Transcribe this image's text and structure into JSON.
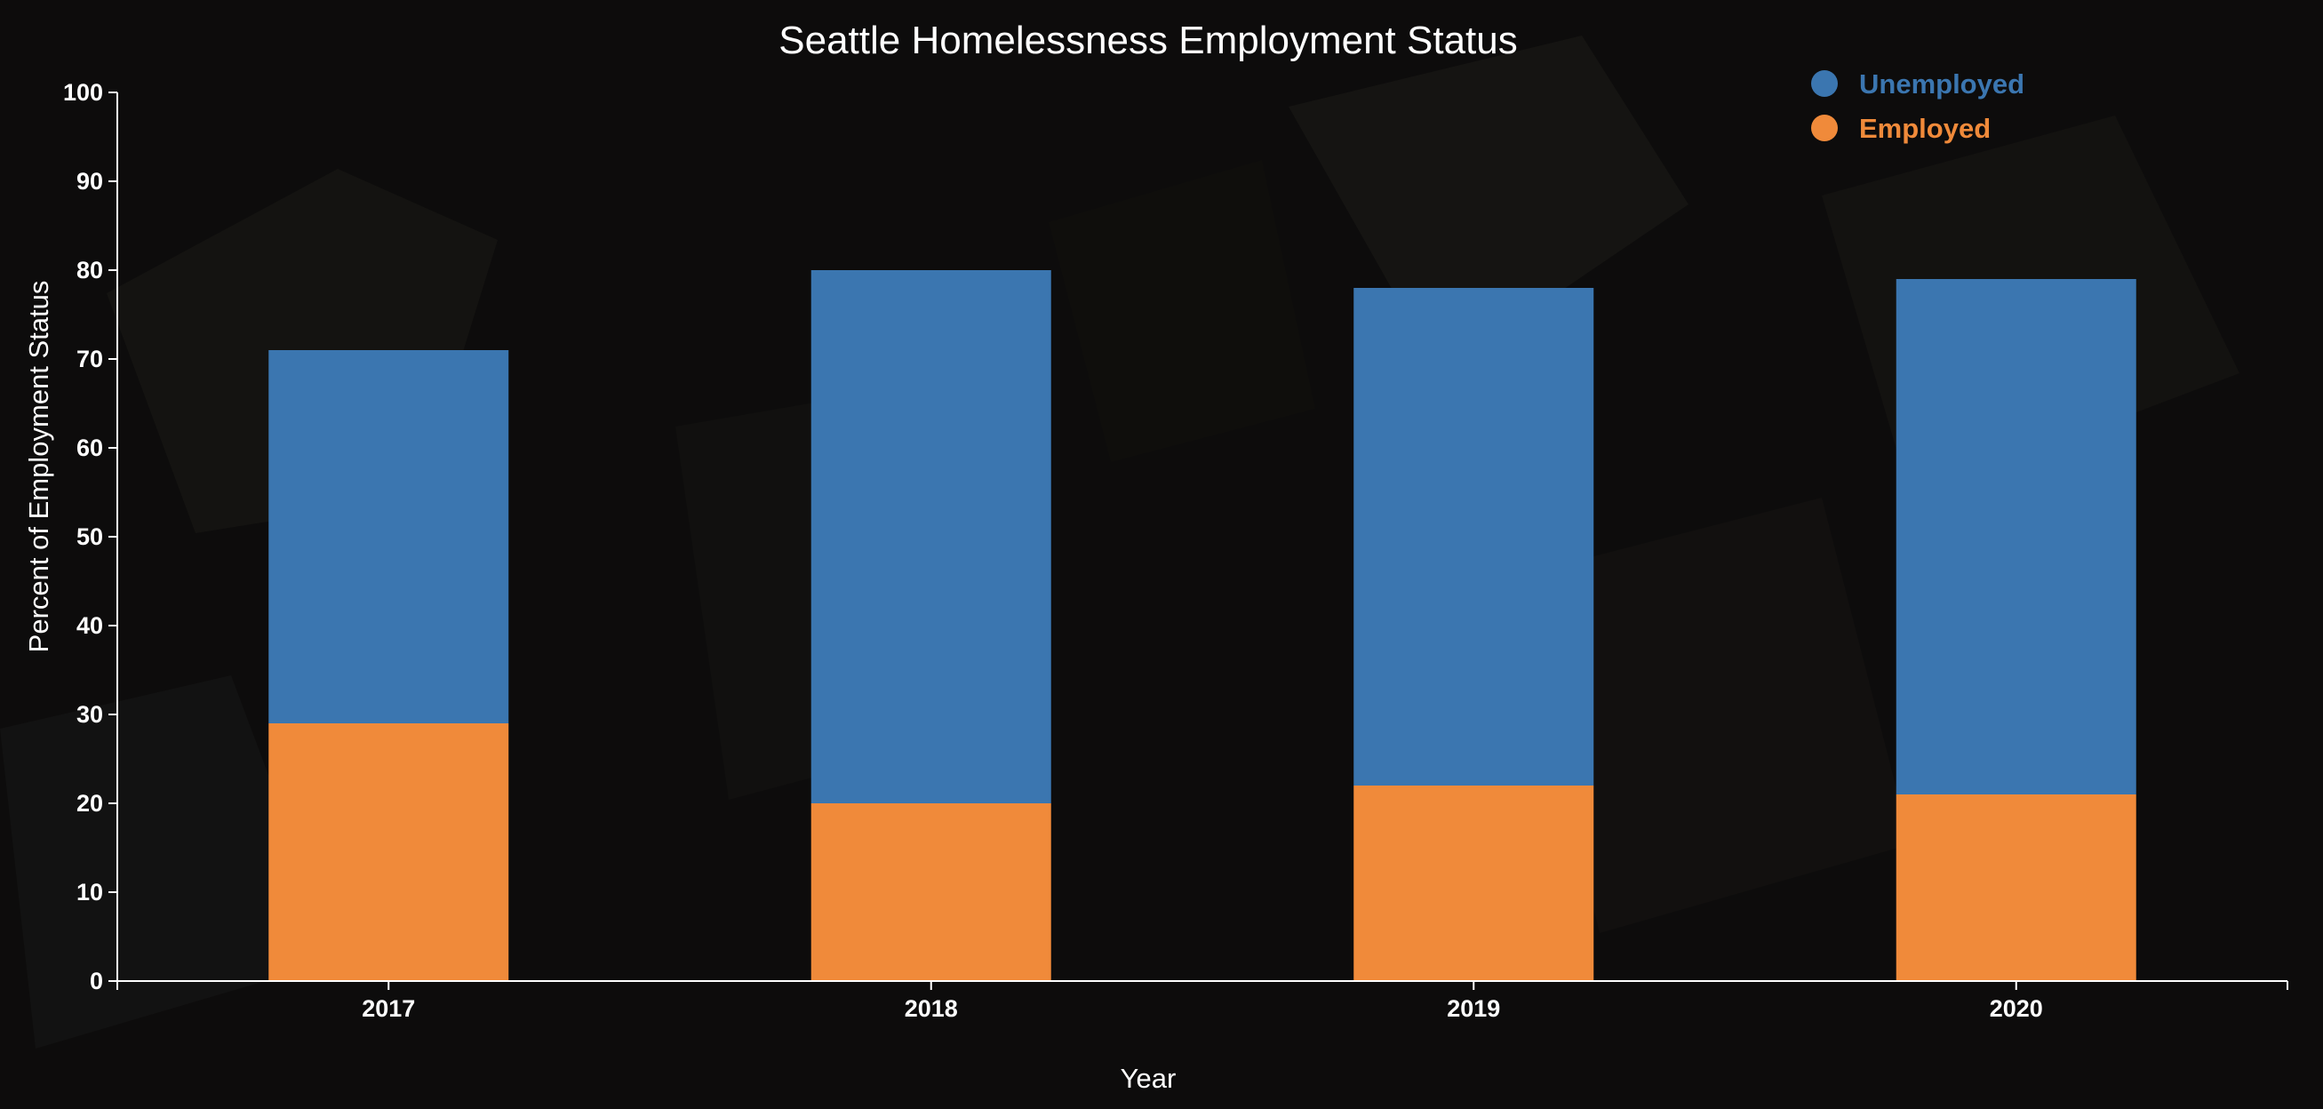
{
  "chart_data": {
    "type": "bar",
    "stacked": true,
    "title": "Seattle Homelessness Employment Status",
    "xlabel": "Year",
    "ylabel": "Percent of Employment Status",
    "categories": [
      "2017",
      "2018",
      "2019",
      "2020"
    ],
    "series": [
      {
        "name": "Employed",
        "values": [
          29,
          20,
          22,
          21
        ],
        "color": "#f08a3a"
      },
      {
        "name": "Unemployed",
        "values": [
          42,
          60,
          56,
          58
        ],
        "color": "#3b76b0"
      }
    ],
    "ylim": [
      0,
      100
    ],
    "yticks": [
      0,
      10,
      20,
      30,
      40,
      50,
      60,
      70,
      80,
      90,
      100
    ],
    "grid": false,
    "legend": {
      "position": "top-right",
      "items": [
        {
          "label": "Unemployed",
          "color": "#3b76b0"
        },
        {
          "label": "Employed",
          "color": "#f08a3a"
        }
      ]
    }
  },
  "background": {
    "description_icon": "photo-background-icon",
    "tint": "#0f0e0d"
  }
}
